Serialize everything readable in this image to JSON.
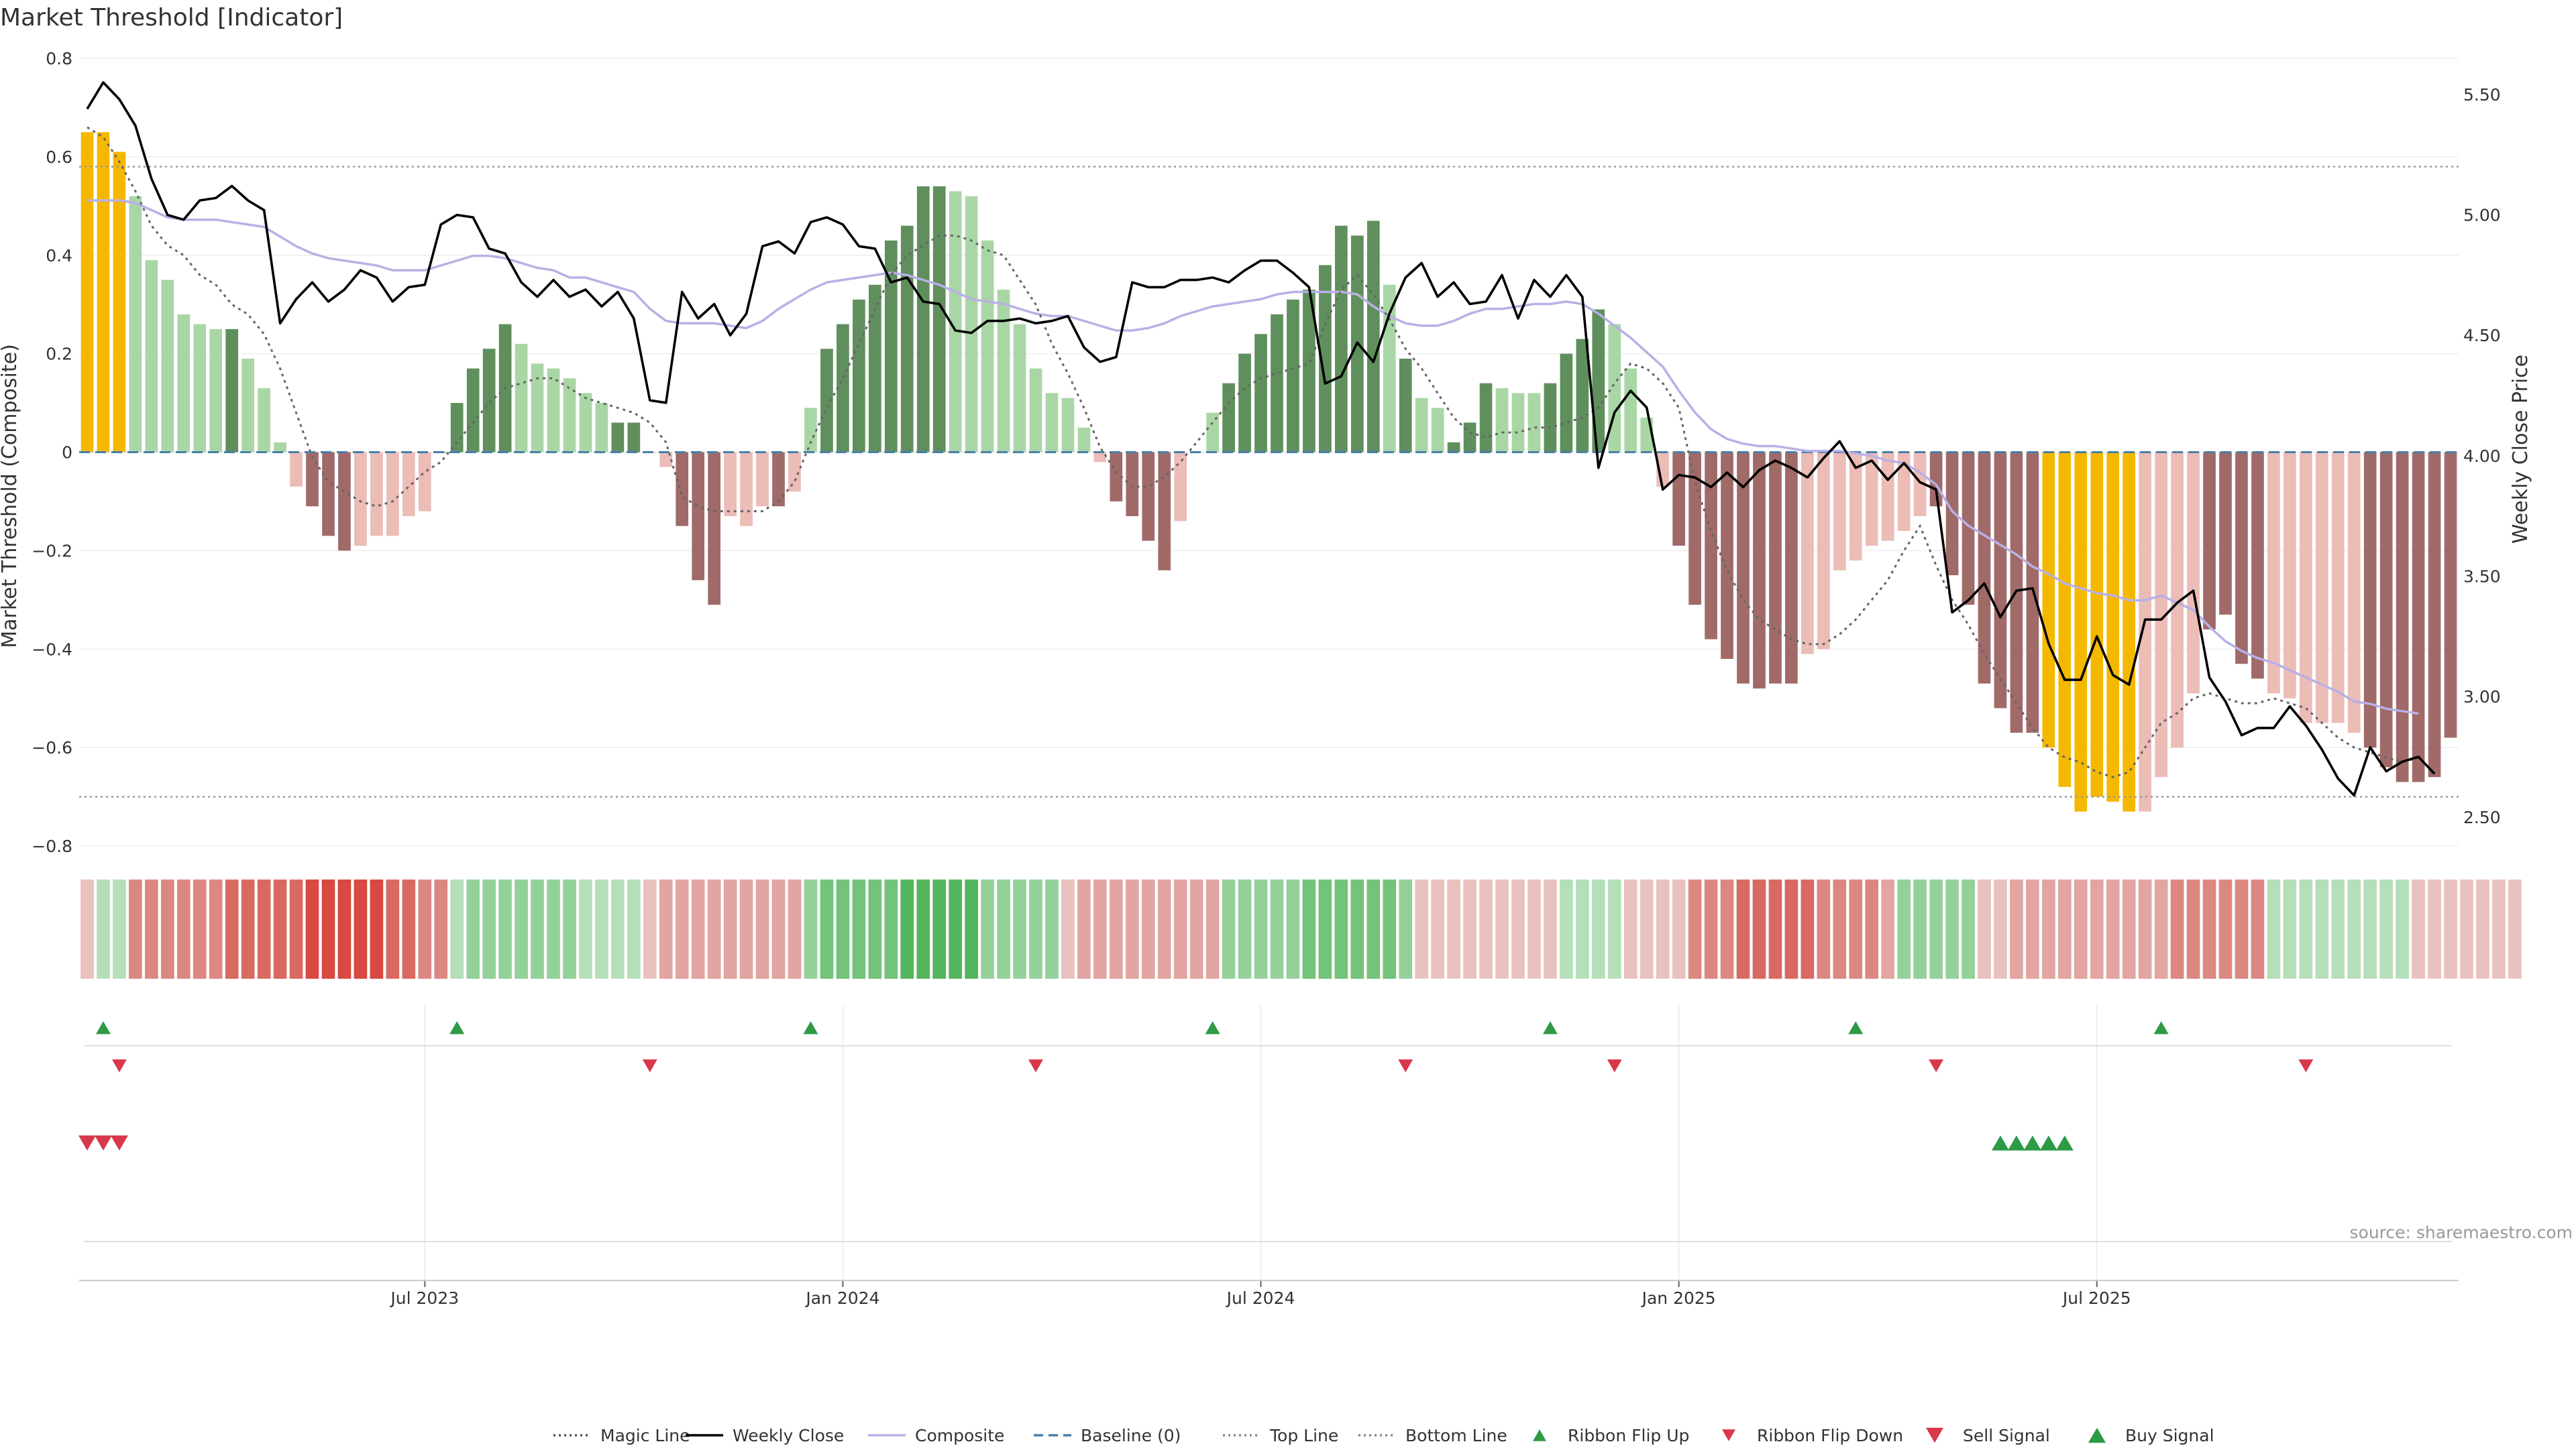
{
  "title": "Market Threshold [Indicator]",
  "source": "source: sharemaestro.com",
  "colors": {
    "gold": "#f5b800",
    "dark_green": "#5f8f5c",
    "light_green": "#a9d6a5",
    "dark_red": "#a06a68",
    "light_red": "#ecbcb6",
    "composite": "#b8b0e6",
    "weekly_close": "#000000",
    "magic": "#666666",
    "baseline": "#4a7fa8",
    "threshold": "#999999",
    "up_marker": "#2e9a44",
    "down_marker": "#d8384a"
  },
  "chart_data": [
    {
      "type": "bar",
      "name": "main-panel",
      "left_axis": {
        "label": "Market Threshold (Composite)",
        "ylim": [
          -0.8,
          0.8
        ],
        "ticks": [
          "0.8",
          "0.6",
          "0.4",
          "0.2",
          "0",
          "−0.2",
          "−0.4",
          "−0.6",
          "−0.8"
        ]
      },
      "right_axis": {
        "label": "Weekly Close Price",
        "ylim": [
          2.38,
          5.65
        ],
        "ticks": [
          "5.50",
          "5.00",
          "4.50",
          "4.00",
          "3.50",
          "3.00",
          "2.50"
        ]
      },
      "x_ticks": [
        "Jul 2023",
        "Jan 2024",
        "Jul 2024",
        "Jan 2025",
        "Jul 2025"
      ],
      "x_tick_index": [
        21,
        47,
        73,
        99,
        125
      ],
      "top_line": 0.58,
      "bottom_line": -0.7,
      "bars": [
        0.65,
        0.65,
        0.61,
        0.52,
        0.39,
        0.35,
        0.28,
        0.26,
        0.25,
        0.25,
        0.19,
        0.13,
        0.02,
        -0.07,
        -0.11,
        -0.17,
        -0.2,
        -0.19,
        -0.17,
        -0.17,
        -0.13,
        -0.12,
        0,
        0.1,
        0.17,
        0.21,
        0.26,
        0.22,
        0.18,
        0.17,
        0.15,
        0.12,
        0.1,
        0.06,
        0.06,
        0,
        -0.03,
        -0.15,
        -0.26,
        -0.31,
        -0.13,
        -0.15,
        -0.11,
        -0.11,
        -0.08,
        0.09,
        0.21,
        0.26,
        0.31,
        0.34,
        0.43,
        0.46,
        0.54,
        0.54,
        0.53,
        0.52,
        0.43,
        0.33,
        0.26,
        0.17,
        0.12,
        0.11,
        0.05,
        -0.02,
        -0.1,
        -0.13,
        -0.18,
        -0.24,
        -0.14,
        0,
        0.08,
        0.14,
        0.2,
        0.24,
        0.28,
        0.31,
        0.33,
        0.38,
        0.46,
        0.44,
        0.47,
        0.34,
        0.19,
        0.11,
        0.09,
        0.02,
        0.06,
        0.14,
        0.13,
        0.12,
        0.12,
        0.14,
        0.2,
        0.23,
        0.29,
        0.26,
        0.17,
        0.07,
        -0.07,
        -0.19,
        -0.31,
        -0.38,
        -0.42,
        -0.47,
        -0.48,
        -0.47,
        -0.47,
        -0.41,
        -0.4,
        -0.24,
        -0.22,
        -0.19,
        -0.18,
        -0.16,
        -0.13,
        -0.11,
        -0.25,
        -0.31,
        -0.47,
        -0.52,
        -0.57,
        -0.57,
        -0.6,
        -0.68,
        -0.73,
        -0.7,
        -0.71,
        -0.73,
        -0.73,
        -0.66,
        -0.6,
        -0.49,
        -0.36,
        -0.33,
        -0.43,
        -0.46,
        -0.49,
        -0.5,
        -0.55,
        -0.55,
        -0.55,
        -0.57,
        -0.6,
        -0.64,
        -0.67,
        -0.67,
        -0.66,
        -0.58
      ],
      "bar_style": [
        "g",
        "g",
        "g",
        "lg",
        "lg",
        "lg",
        "lg",
        "lg",
        "lg",
        "dg",
        "lg",
        "lg",
        "lg",
        "lr",
        "dr",
        "dr",
        "dr",
        "lr",
        "lr",
        "lr",
        "lr",
        "lr",
        "dg",
        "dg",
        "dg",
        "dg",
        "dg",
        "lg",
        "lg",
        "lg",
        "lg",
        "lg",
        "lg",
        "dg",
        "dg",
        "lr",
        "lr",
        "dr",
        "dr",
        "dr",
        "lr",
        "lr",
        "lr",
        "dr",
        "lr",
        "lg",
        "dg",
        "dg",
        "dg",
        "dg",
        "dg",
        "dg",
        "dg",
        "dg",
        "lg",
        "lg",
        "lg",
        "lg",
        "lg",
        "lg",
        "lg",
        "lg",
        "lg",
        "lr",
        "dr",
        "dr",
        "dr",
        "dr",
        "lr",
        "lg",
        "lg",
        "dg",
        "dg",
        "dg",
        "dg",
        "dg",
        "dg",
        "dg",
        "dg",
        "dg",
        "dg",
        "lg",
        "dg",
        "lg",
        "lg",
        "dg",
        "dg",
        "dg",
        "lg",
        "lg",
        "lg",
        "dg",
        "dg",
        "dg",
        "dg",
        "lg",
        "lg",
        "lg",
        "lr",
        "dr",
        "dr",
        "dr",
        "dr",
        "dr",
        "dr",
        "dr",
        "dr",
        "lr",
        "lr",
        "lr",
        "lr",
        "lr",
        "lr",
        "lr",
        "lr",
        "dr",
        "dr",
        "dr",
        "dr",
        "dr",
        "dr",
        "dr",
        "g",
        "g",
        "g",
        "g",
        "g",
        "g",
        "lr",
        "lr",
        "lr",
        "lr",
        "dr",
        "dr",
        "dr",
        "dr",
        "lr",
        "lr",
        "lr",
        "lr",
        "lr",
        "lr",
        "dr",
        "dr",
        "dr",
        "dr",
        "dr",
        "dr",
        "dr",
        "lr"
      ],
      "weekly_close": [
        5.44,
        5.55,
        5.48,
        5.37,
        5.15,
        5.0,
        4.98,
        5.06,
        5.07,
        5.12,
        5.06,
        5.02,
        4.55,
        4.65,
        4.72,
        4.64,
        4.69,
        4.77,
        4.74,
        4.64,
        4.7,
        4.71,
        4.96,
        5.0,
        4.99,
        4.86,
        4.84,
        4.72,
        4.66,
        4.73,
        4.66,
        4.69,
        4.62,
        4.68,
        4.57,
        4.23,
        4.22,
        4.68,
        4.57,
        4.63,
        4.5,
        4.59,
        4.87,
        4.89,
        4.84,
        4.97,
        4.99,
        4.96,
        4.87,
        4.86,
        4.72,
        4.74,
        4.64,
        4.63,
        4.52,
        4.51,
        4.56,
        4.56,
        4.57,
        4.55,
        4.56,
        4.58,
        4.45,
        4.39,
        4.41,
        4.72,
        4.7,
        4.7,
        4.73,
        4.73,
        4.74,
        4.72,
        4.77,
        4.81,
        4.81,
        4.76,
        4.7,
        4.3,
        4.33,
        4.47,
        4.39,
        4.59,
        4.74,
        4.8,
        4.66,
        4.72,
        4.63,
        4.64,
        4.75,
        4.57,
        4.73,
        4.66,
        4.75,
        4.66,
        3.95,
        4.18,
        4.27,
        4.2,
        3.86,
        3.92,
        3.91,
        3.87,
        3.93,
        3.87,
        3.94,
        3.98,
        3.95,
        3.91,
        3.99,
        4.06,
        3.95,
        3.98,
        3.9,
        3.97,
        3.89,
        3.86,
        3.35,
        3.4,
        3.47,
        3.33,
        3.44,
        3.45,
        3.22,
        3.07,
        3.07,
        3.25,
        3.09,
        3.05,
        3.32,
        3.32,
        3.39,
        3.44,
        3.08,
        2.98,
        2.84,
        2.87,
        2.87,
        2.96,
        2.88,
        2.78,
        2.66,
        2.59,
        2.79,
        2.69,
        2.73,
        2.75,
        2.68
      ],
      "composite": [
        5.06,
        5.06,
        5.06,
        5.05,
        5.02,
        4.99,
        4.98,
        4.98,
        4.98,
        4.97,
        4.96,
        4.95,
        4.91,
        4.87,
        4.84,
        4.82,
        4.81,
        4.8,
        4.79,
        4.77,
        4.77,
        4.77,
        4.79,
        4.81,
        4.83,
        4.83,
        4.82,
        4.8,
        4.78,
        4.77,
        4.74,
        4.74,
        4.72,
        4.7,
        4.68,
        4.61,
        4.56,
        4.55,
        4.55,
        4.55,
        4.54,
        4.53,
        4.56,
        4.61,
        4.65,
        4.69,
        4.72,
        4.73,
        4.74,
        4.75,
        4.76,
        4.75,
        4.73,
        4.71,
        4.68,
        4.65,
        4.64,
        4.63,
        4.61,
        4.59,
        4.58,
        4.58,
        4.56,
        4.54,
        4.52,
        4.52,
        4.53,
        4.55,
        4.58,
        4.6,
        4.62,
        4.63,
        4.64,
        4.65,
        4.67,
        4.68,
        4.68,
        4.68,
        4.68,
        4.67,
        4.62,
        4.58,
        4.55,
        4.54,
        4.54,
        4.56,
        4.59,
        4.61,
        4.61,
        4.62,
        4.63,
        4.63,
        4.64,
        4.63,
        4.59,
        4.54,
        4.49,
        4.43,
        4.37,
        4.27,
        4.18,
        4.11,
        4.07,
        4.05,
        4.04,
        4.04,
        4.03,
        4.02,
        4.02,
        4.02,
        4.01,
        4.0,
        3.98,
        3.97,
        3.93,
        3.88,
        3.77,
        3.71,
        3.67,
        3.63,
        3.59,
        3.54,
        3.51,
        3.47,
        3.45,
        3.43,
        3.42,
        3.4,
        3.4,
        3.42,
        3.39,
        3.36,
        3.29,
        3.23,
        3.19,
        3.16,
        3.14,
        3.11,
        3.08,
        3.05,
        3.02,
        2.98,
        2.97,
        2.95,
        2.94,
        2.93
      ],
      "magic_line": [
        0.66,
        0.64,
        0.59,
        0.53,
        0.46,
        0.42,
        0.4,
        0.36,
        0.34,
        0.3,
        0.28,
        0.24,
        0.17,
        0.08,
        -0.01,
        -0.06,
        -0.08,
        -0.1,
        -0.11,
        -0.1,
        -0.07,
        -0.04,
        -0.02,
        0.02,
        0.06,
        0.1,
        0.13,
        0.14,
        0.15,
        0.15,
        0.13,
        0.11,
        0.1,
        0.09,
        0.08,
        0.06,
        0.02,
        -0.09,
        -0.11,
        -0.12,
        -0.12,
        -0.12,
        -0.12,
        -0.1,
        -0.06,
        0.02,
        0.09,
        0.15,
        0.22,
        0.29,
        0.36,
        0.4,
        0.42,
        0.44,
        0.44,
        0.43,
        0.41,
        0.4,
        0.35,
        0.3,
        0.22,
        0.16,
        0.09,
        0.01,
        -0.04,
        -0.07,
        -0.07,
        -0.05,
        -0.02,
        0.02,
        0.06,
        0.1,
        0.13,
        0.15,
        0.16,
        0.17,
        0.18,
        0.26,
        0.33,
        0.36,
        0.32,
        0.27,
        0.21,
        0.17,
        0.12,
        0.07,
        0.04,
        0.03,
        0.04,
        0.04,
        0.05,
        0.05,
        0.06,
        0.07,
        0.09,
        0.14,
        0.18,
        0.17,
        0.14,
        0.09,
        -0.06,
        -0.16,
        -0.24,
        -0.3,
        -0.34,
        -0.36,
        -0.38,
        -0.39,
        -0.39,
        -0.37,
        -0.34,
        -0.3,
        -0.26,
        -0.2,
        -0.15,
        -0.23,
        -0.3,
        -0.35,
        -0.41,
        -0.46,
        -0.51,
        -0.56,
        -0.6,
        -0.62,
        -0.63,
        -0.65,
        -0.66,
        -0.65,
        -0.6,
        -0.55,
        -0.53,
        -0.5,
        -0.49,
        -0.5,
        -0.51,
        -0.51,
        -0.5,
        -0.51,
        -0.52,
        -0.55,
        -0.58,
        -0.6,
        -0.61,
        -0.62,
        -0.63,
        -0.62
      ]
    },
    {
      "type": "heatmap",
      "name": "ribbon",
      "values": [
        -1,
        1,
        1,
        -3,
        -3,
        -3,
        -3,
        -3,
        -3,
        -4,
        -4,
        -4,
        -4,
        -4,
        -5,
        -5,
        -5,
        -5,
        -5,
        -4,
        -4,
        -3,
        -3,
        1,
        2,
        2,
        2,
        2,
        2,
        2,
        2,
        1,
        1,
        1,
        1,
        -1,
        -2,
        -2,
        -2,
        -2,
        -2,
        -2,
        -2,
        -2,
        -2,
        2,
        3,
        3,
        3,
        3,
        3,
        4,
        4,
        4,
        4,
        4,
        2,
        2,
        2,
        2,
        2,
        -1,
        -2,
        -2,
        -2,
        -2,
        -2,
        -2,
        -2,
        -2,
        -2,
        2,
        2,
        2,
        2,
        2,
        3,
        3,
        3,
        3,
        3,
        3,
        2,
        -1,
        -1,
        -1,
        -1,
        -1,
        -1,
        -1,
        -1,
        -1,
        1,
        1,
        1,
        1,
        -1,
        -1,
        -1,
        -1,
        -3,
        -3,
        -3,
        -4,
        -4,
        -4,
        -4,
        -4,
        -3,
        -3,
        -3,
        -3,
        -2,
        2,
        2,
        2,
        2,
        2,
        -1,
        -1,
        -2,
        -2,
        -2,
        -2,
        -2,
        -2,
        -2,
        -2,
        -2,
        -2,
        -3,
        -3,
        -3,
        -3,
        -3,
        -3,
        1,
        1,
        1,
        1,
        1,
        1,
        1,
        1,
        1,
        -1,
        -1,
        -1,
        -1,
        -1,
        -1,
        -1
      ]
    },
    {
      "type": "scatter",
      "name": "ribbon-flips",
      "ribbon_flip_up": [
        1,
        23,
        45,
        70,
        91,
        110,
        129
      ],
      "ribbon_flip_down": [
        2,
        35,
        59,
        82,
        95,
        115,
        138
      ],
      "sell_signal": [
        0,
        1,
        2
      ],
      "buy_signal": [
        119,
        120,
        121,
        122,
        123
      ]
    }
  ],
  "legend": [
    {
      "label": "Magic Line",
      "kind": "dotted",
      "color": "#555555"
    },
    {
      "label": "Weekly Close",
      "kind": "solid",
      "color": "#000000"
    },
    {
      "label": "Composite",
      "kind": "solid",
      "color": "#b8b0e6"
    },
    {
      "label": "Baseline (0)",
      "kind": "dashed",
      "color": "#4a7fa8"
    },
    {
      "label": "Top Line",
      "kind": "dotted",
      "color": "#888888"
    },
    {
      "label": "Bottom Line",
      "kind": "dotted",
      "color": "#888888"
    },
    {
      "label": "Ribbon Flip Up",
      "kind": "tri-up",
      "color": "#2e9a44"
    },
    {
      "label": "Ribbon Flip Down",
      "kind": "tri-down",
      "color": "#d8384a"
    },
    {
      "label": "Sell Signal",
      "kind": "tri-down-big",
      "color": "#d8384a"
    },
    {
      "label": "Buy Signal",
      "kind": "tri-up-big",
      "color": "#2e9a44"
    }
  ]
}
